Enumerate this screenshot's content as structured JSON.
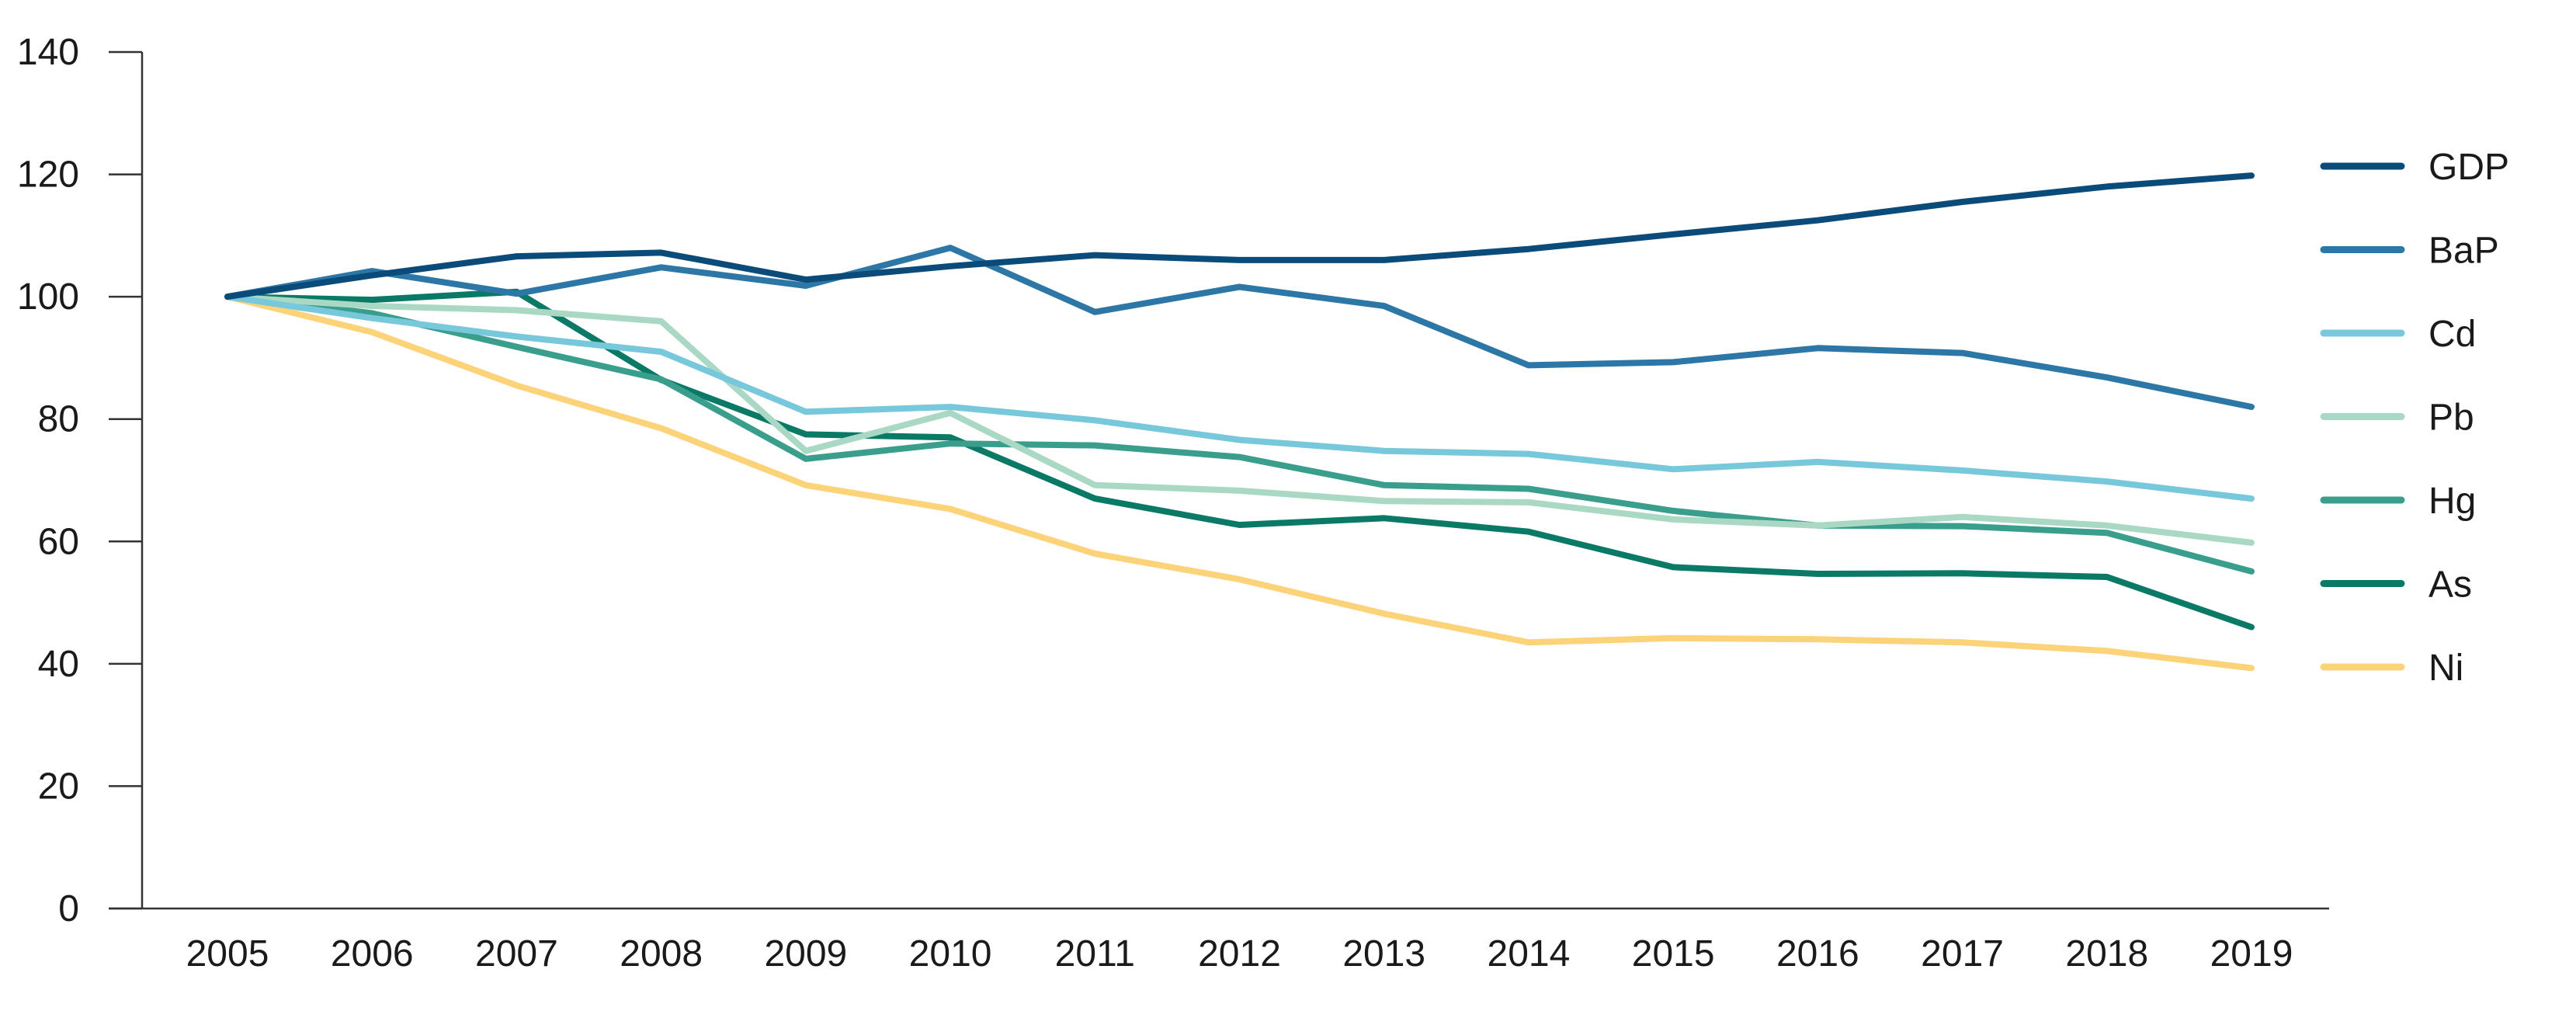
{
  "chart_data": {
    "type": "line",
    "title": "",
    "xlabel": "",
    "ylabel": "",
    "x": [
      2005,
      2006,
      2007,
      2008,
      2009,
      2010,
      2011,
      2012,
      2013,
      2014,
      2015,
      2016,
      2017,
      2018,
      2019
    ],
    "x_tick_labels": [
      "2005",
      "2006",
      "2007",
      "2008",
      "2009",
      "2010",
      "2011",
      "2012",
      "2013",
      "2014",
      "2015",
      "2016",
      "2017",
      "2018",
      "2019"
    ],
    "ylim": [
      0,
      140
    ],
    "y_ticks": [
      0,
      20,
      40,
      60,
      80,
      100,
      120,
      140
    ],
    "y_tick_labels": [
      "0",
      "20",
      "40",
      "60",
      "80",
      "100",
      "120",
      "140"
    ],
    "grid": false,
    "legend_position": "right",
    "series": [
      {
        "name": "GDP",
        "color": "#0b4b7a",
        "values": [
          100,
          103.5,
          106.6,
          107.2,
          102.8,
          105,
          106.8,
          106,
          106,
          107.8,
          110.2,
          112.5,
          115.5,
          118,
          119.8
        ]
      },
      {
        "name": "BaP",
        "color": "#2d77a6",
        "values": [
          100,
          104.2,
          100.5,
          104.8,
          101.8,
          108,
          97.5,
          101.6,
          98.5,
          88.8,
          89.3,
          91.6,
          90.8,
          86.8,
          82
        ]
      },
      {
        "name": "Cd",
        "color": "#78c8dc",
        "values": [
          100,
          96.5,
          93.5,
          91,
          81.2,
          82,
          79.8,
          76.6,
          74.8,
          74.3,
          71.8,
          73,
          71.6,
          69.8,
          67
        ]
      },
      {
        "name": "Pb",
        "color": "#a9d8c4",
        "values": [
          100,
          98.5,
          97.8,
          96,
          74.8,
          81,
          69.2,
          68.3,
          66.6,
          66.4,
          63.6,
          62.6,
          64,
          62.6,
          59.8
        ]
      },
      {
        "name": "Hg",
        "color": "#3a9e8c",
        "values": [
          100,
          97.3,
          91.8,
          86.5,
          73.5,
          76,
          75.7,
          73.8,
          69.2,
          68.6,
          65,
          62.6,
          62.5,
          61.4,
          55.1
        ]
      },
      {
        "name": "As",
        "color": "#0a7a66",
        "values": [
          100,
          99.5,
          100.8,
          86.4,
          77.5,
          77,
          67,
          62.7,
          63.8,
          61.6,
          55.8,
          54.7,
          54.8,
          54.2,
          46
        ]
      },
      {
        "name": "Ni",
        "color": "#fdd37a",
        "values": [
          100,
          94.2,
          85.5,
          78.5,
          69.2,
          65.3,
          58,
          53.8,
          48.2,
          43.5,
          44.2,
          44,
          43.5,
          42.1,
          39.3
        ]
      }
    ]
  }
}
